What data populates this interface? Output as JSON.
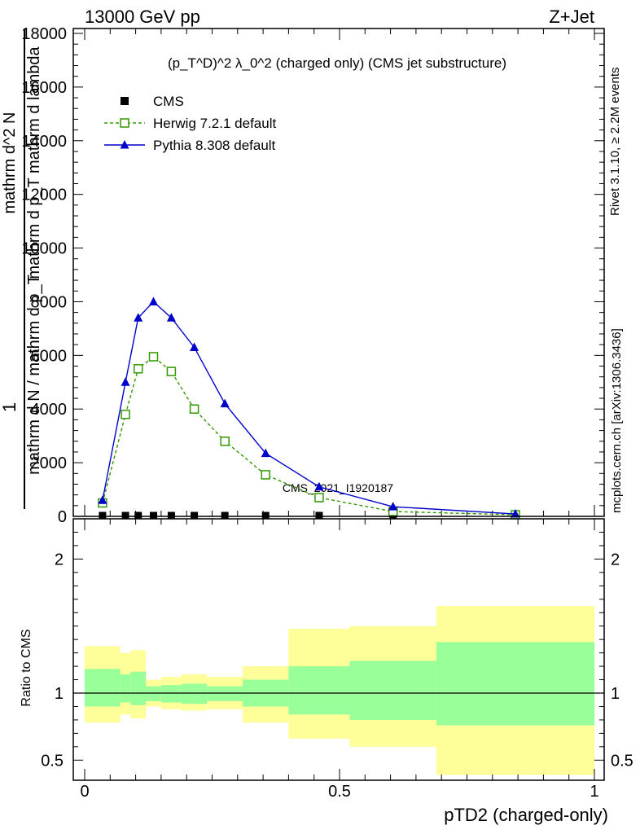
{
  "header": {
    "left": "13000 GeV pp",
    "right": "Z+Jet"
  },
  "side": {
    "rivet": "Rivet 3.1.10, ≥ 2.2M events",
    "mcplots": "mcplots.cern.ch [arXiv:1306.3436]"
  },
  "chart_data": [
    {
      "type": "line",
      "title": "(p_T^D)^2 λ_0^2 (charged only) (CMS jet substructure)",
      "watermark": "CMS_2021_I1920187",
      "ylabel_lines": [
        "1",
        "mathrm d N / mathrm d p_T",
        "mathrm d^2 N",
        "mathrm d p_T mathrm d lambda"
      ],
      "xlim": [
        0,
        1
      ],
      "ylim": [
        0,
        18000
      ],
      "yticks": [
        "0",
        "2000",
        "4000",
        "6000",
        "8000",
        "10000",
        "12000",
        "14000",
        "16000",
        "18000"
      ],
      "x": [
        0.035,
        0.08,
        0.105,
        0.135,
        0.17,
        0.215,
        0.275,
        0.355,
        0.46,
        0.605,
        0.845
      ],
      "series": [
        {
          "name": "CMS",
          "color": "#000000",
          "marker": "square",
          "values": [
            30,
            30,
            30,
            30,
            30,
            30,
            30,
            30,
            30,
            30,
            30
          ]
        },
        {
          "name": "Herwig 7.2.1 default",
          "color": "#339900",
          "marker": "open-square",
          "dash": true,
          "values": [
            500,
            3800,
            5500,
            5950,
            5400,
            4000,
            2800,
            1550,
            700,
            180,
            60
          ]
        },
        {
          "name": "Pythia 8.308 default",
          "color": "#0000cc",
          "marker": "triangle",
          "values": [
            600,
            5000,
            7400,
            8000,
            7400,
            6300,
            4200,
            2350,
            1100,
            360,
            90
          ]
        }
      ]
    },
    {
      "type": "area",
      "ylabel": "Ratio to CMS",
      "xlabel": "pTD2 (charged-only)",
      "xlim": [
        0,
        1
      ],
      "ylim": [
        0.35,
        2.3
      ],
      "xticks": [
        "0",
        "0.5",
        "1"
      ],
      "yticks": [
        "0.5",
        "1",
        "2"
      ],
      "reference": 1,
      "bands": [
        {
          "x0": 0.0,
          "x1": 0.07,
          "inner": [
            0.9,
            1.18
          ],
          "outer": [
            0.78,
            1.35
          ]
        },
        {
          "x0": 0.07,
          "x1": 0.09,
          "inner": [
            0.93,
            1.14
          ],
          "outer": [
            0.84,
            1.3
          ]
        },
        {
          "x0": 0.09,
          "x1": 0.12,
          "inner": [
            0.91,
            1.16
          ],
          "outer": [
            0.81,
            1.32
          ]
        },
        {
          "x0": 0.12,
          "x1": 0.15,
          "inner": [
            0.94,
            1.05
          ],
          "outer": [
            0.9,
            1.1
          ]
        },
        {
          "x0": 0.15,
          "x1": 0.19,
          "inner": [
            0.93,
            1.06
          ],
          "outer": [
            0.88,
            1.12
          ]
        },
        {
          "x0": 0.19,
          "x1": 0.24,
          "inner": [
            0.92,
            1.07
          ],
          "outer": [
            0.87,
            1.14
          ]
        },
        {
          "x0": 0.24,
          "x1": 0.31,
          "inner": [
            0.94,
            1.05
          ],
          "outer": [
            0.88,
            1.12
          ]
        },
        {
          "x0": 0.31,
          "x1": 0.4,
          "inner": [
            0.9,
            1.1
          ],
          "outer": [
            0.78,
            1.2
          ]
        },
        {
          "x0": 0.4,
          "x1": 0.52,
          "inner": [
            0.84,
            1.2
          ],
          "outer": [
            0.66,
            1.48
          ]
        },
        {
          "x0": 0.52,
          "x1": 0.69,
          "inner": [
            0.8,
            1.24
          ],
          "outer": [
            0.6,
            1.5
          ]
        },
        {
          "x0": 0.69,
          "x1": 1.0,
          "inner": [
            0.76,
            1.38
          ],
          "outer": [
            0.39,
            1.65
          ]
        }
      ],
      "band_colors": {
        "inner": "#99ff99",
        "outer": "#ffff99"
      }
    }
  ]
}
